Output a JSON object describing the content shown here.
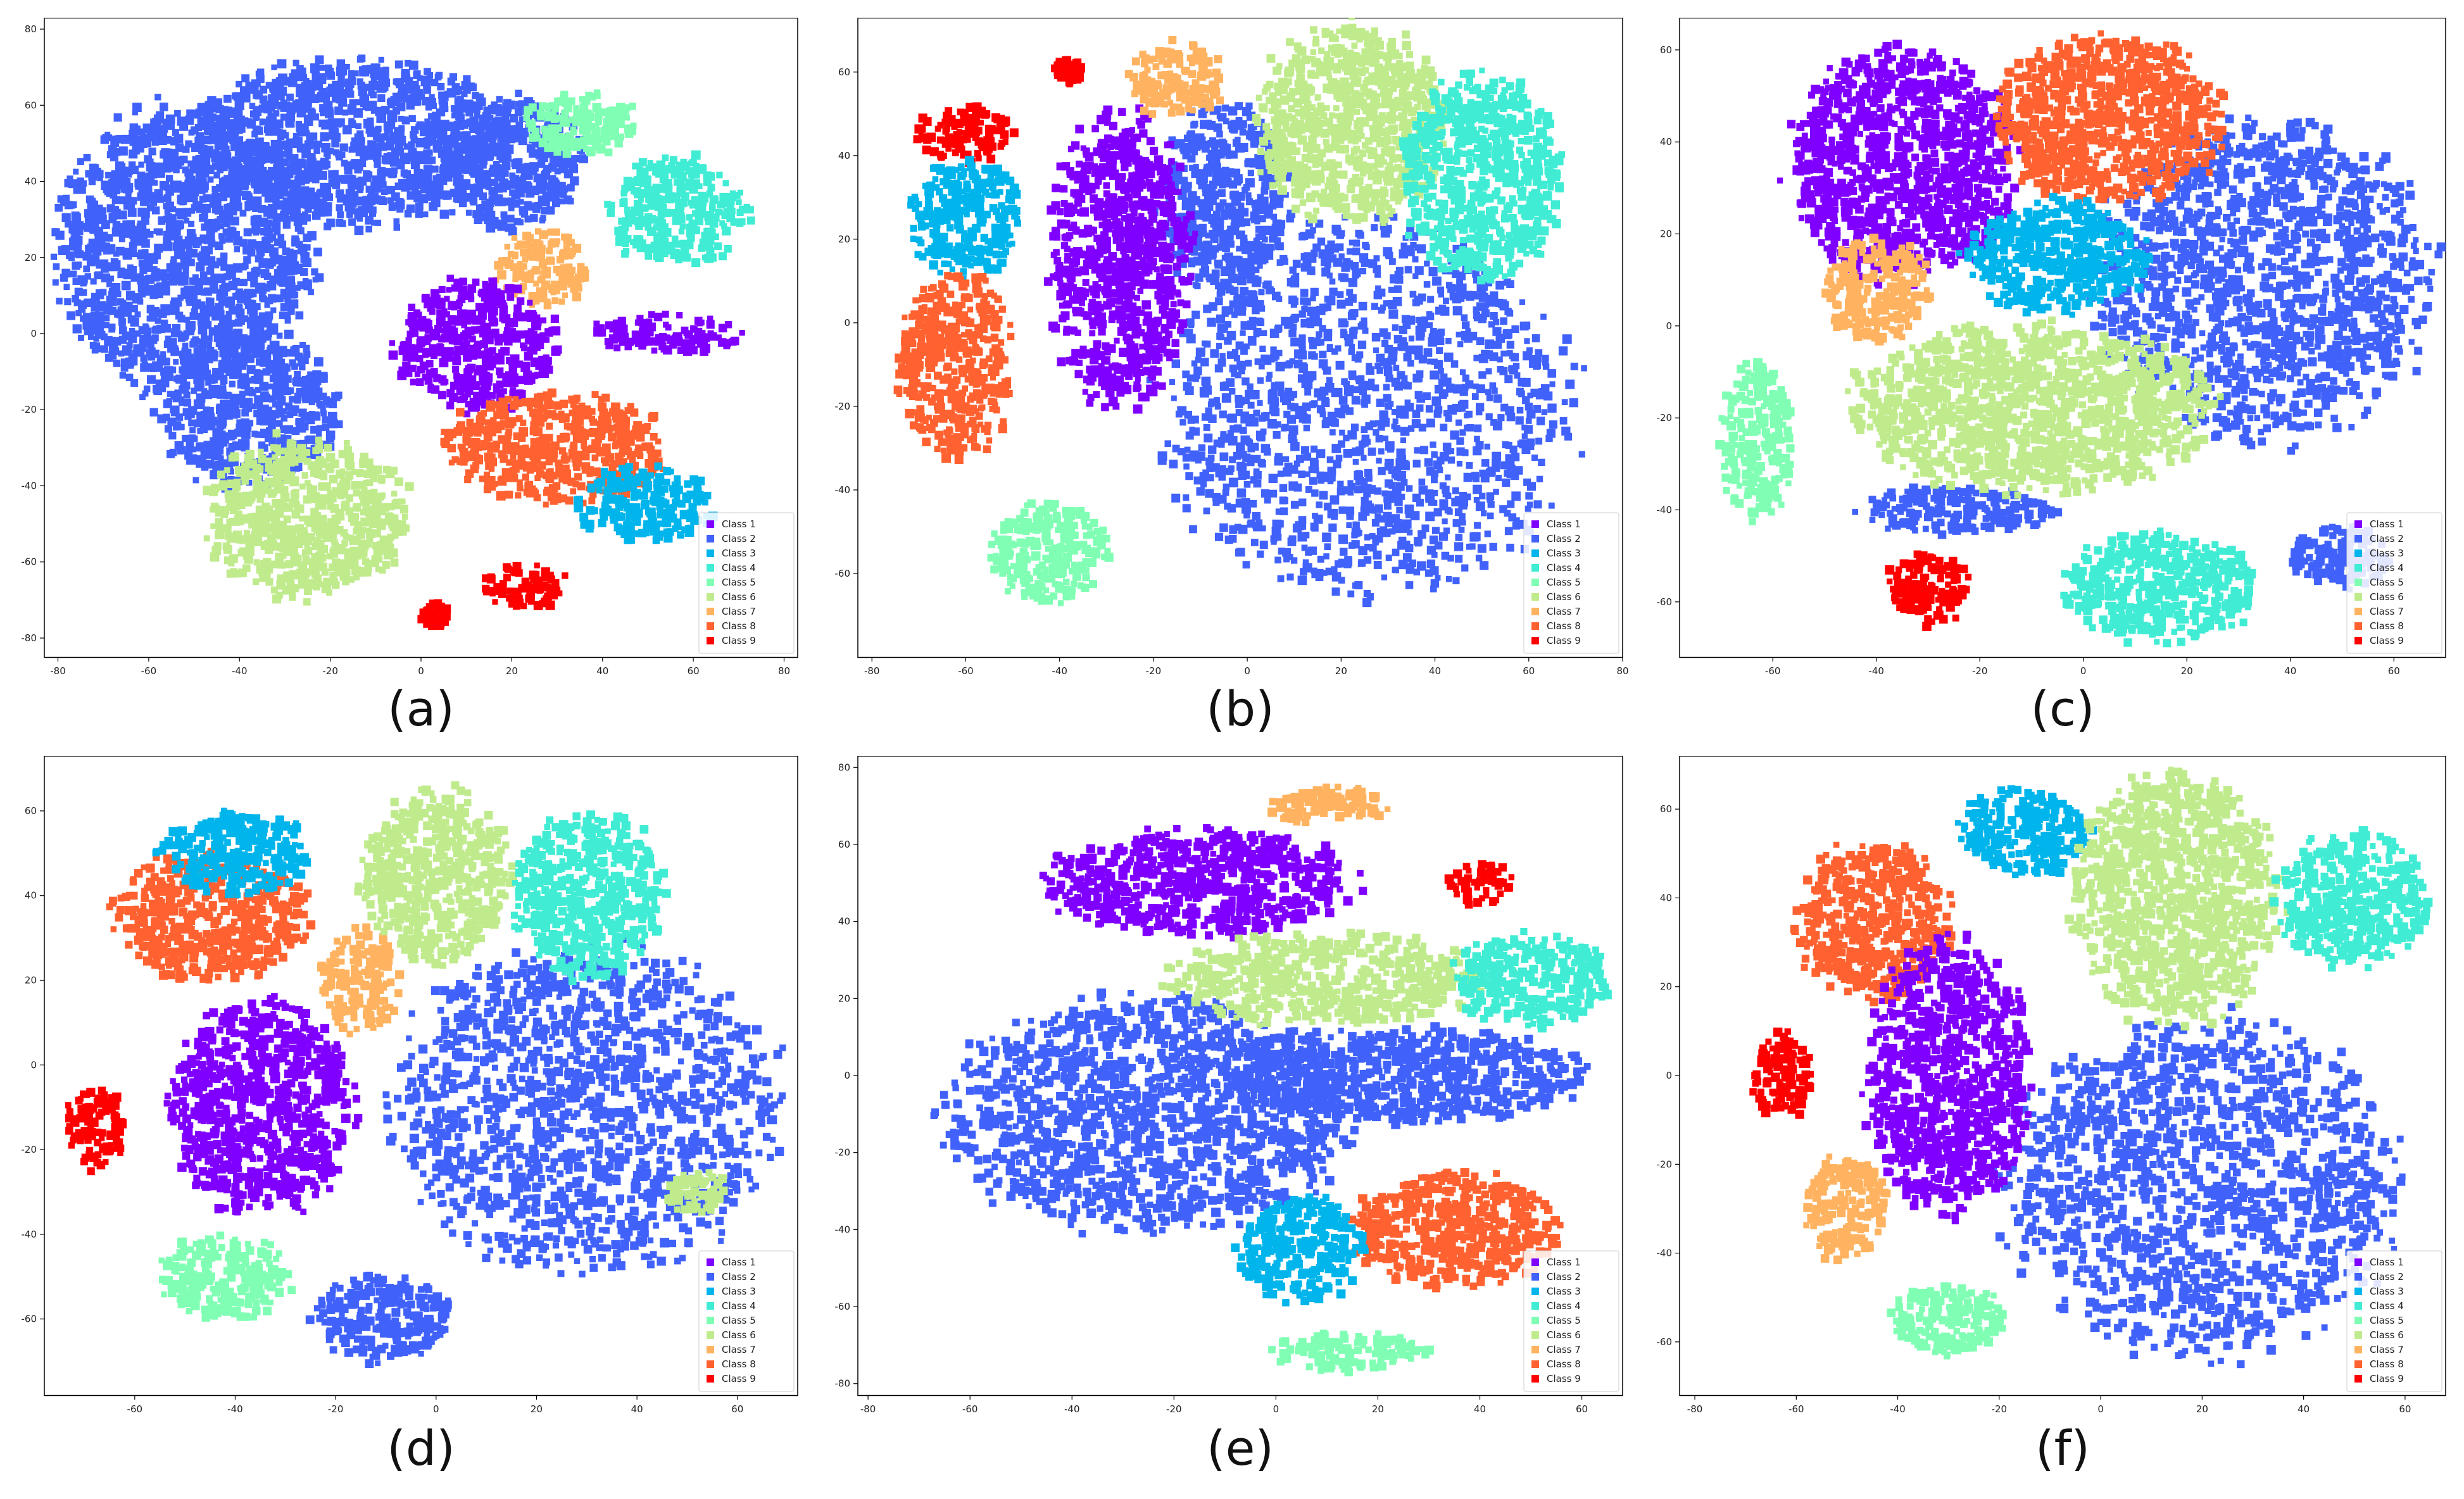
{
  "chart_data": [
    {
      "type": "scatter",
      "title": "",
      "caption": "(a)",
      "xlabel": "",
      "ylabel": "",
      "xlim": [
        -83,
        83
      ],
      "ylim": [
        -85,
        83
      ],
      "xticks": [
        "-80",
        "-60",
        "-40",
        "-20",
        "0",
        "20",
        "40",
        "60",
        "80"
      ],
      "yticks": [
        "-80",
        "-60",
        "-40",
        "-20",
        "0",
        "20",
        "40",
        "60",
        "80"
      ],
      "legend_position": "bottom-right",
      "clusters": [
        {
          "class": 2,
          "x": -52,
          "y": 22,
          "rx": 28,
          "ry": 38
        },
        {
          "class": 2,
          "x": -15,
          "y": 50,
          "rx": 35,
          "ry": 22
        },
        {
          "class": 2,
          "x": -38,
          "y": -20,
          "rx": 20,
          "ry": 20
        },
        {
          "class": 2,
          "x": 20,
          "y": 45,
          "rx": 15,
          "ry": 18
        },
        {
          "class": 5,
          "x": 35,
          "y": 55,
          "rx": 13,
          "ry": 8
        },
        {
          "class": 4,
          "x": 57,
          "y": 32,
          "rx": 16,
          "ry": 14
        },
        {
          "class": 7,
          "x": 27,
          "y": 17,
          "rx": 10,
          "ry": 10
        },
        {
          "class": 1,
          "x": 12,
          "y": -3,
          "rx": 18,
          "ry": 17
        },
        {
          "class": 1,
          "x": 55,
          "y": 0,
          "rx": 17,
          "ry": 5
        },
        {
          "class": 8,
          "x": 30,
          "y": -30,
          "rx": 25,
          "ry": 14
        },
        {
          "class": 3,
          "x": 50,
          "y": -45,
          "rx": 15,
          "ry": 10
        },
        {
          "class": 6,
          "x": -25,
          "y": -48,
          "rx": 22,
          "ry": 21
        },
        {
          "class": 9,
          "x": 23,
          "y": -66,
          "rx": 9,
          "ry": 6
        },
        {
          "class": 9,
          "x": 3,
          "y": -74,
          "rx": 3,
          "ry": 3
        }
      ]
    },
    {
      "type": "scatter",
      "title": "",
      "caption": "(b)",
      "xlabel": "",
      "ylabel": "",
      "xlim": [
        -83,
        80
      ],
      "ylim": [
        -80,
        73
      ],
      "xticks": [
        "-80",
        "-60",
        "-40",
        "-20",
        "0",
        "20",
        "40",
        "60",
        "80"
      ],
      "yticks": [
        "-60",
        "-40",
        "-20",
        "0",
        "20",
        "40",
        "60"
      ],
      "legend_position": "bottom-right",
      "clusters": [
        {
          "class": 2,
          "x": 25,
          "y": -20,
          "rx": 44,
          "ry": 44
        },
        {
          "class": 2,
          "x": -5,
          "y": 30,
          "rx": 14,
          "ry": 22
        },
        {
          "class": 1,
          "x": -27,
          "y": 15,
          "rx": 15,
          "ry": 35
        },
        {
          "class": 6,
          "x": 22,
          "y": 48,
          "rx": 20,
          "ry": 24
        },
        {
          "class": 4,
          "x": 50,
          "y": 35,
          "rx": 17,
          "ry": 24
        },
        {
          "class": 7,
          "x": -15,
          "y": 58,
          "rx": 10,
          "ry": 9
        },
        {
          "class": 9,
          "x": -60,
          "y": 45,
          "rx": 10,
          "ry": 7
        },
        {
          "class": 9,
          "x": -38,
          "y": 60,
          "rx": 3,
          "ry": 3
        },
        {
          "class": 3,
          "x": -60,
          "y": 25,
          "rx": 12,
          "ry": 14
        },
        {
          "class": 8,
          "x": -62,
          "y": -10,
          "rx": 12,
          "ry": 22
        },
        {
          "class": 5,
          "x": -42,
          "y": -55,
          "rx": 13,
          "ry": 12
        }
      ]
    },
    {
      "type": "scatter",
      "title": "",
      "caption": "(c)",
      "xlabel": "",
      "ylabel": "",
      "xlim": [
        -78,
        70
      ],
      "ylim": [
        -72,
        67
      ],
      "xticks": [
        "-60",
        "-40",
        "-20",
        "0",
        "20",
        "40",
        "60"
      ],
      "yticks": [
        "-60",
        "-40",
        "-20",
        "0",
        "20",
        "40",
        "60"
      ],
      "legend_position": "bottom-right",
      "clusters": [
        {
          "class": 2,
          "x": 35,
          "y": 10,
          "rx": 32,
          "ry": 35
        },
        {
          "class": 2,
          "x": -25,
          "y": -40,
          "rx": 20,
          "ry": 5
        },
        {
          "class": 2,
          "x": 50,
          "y": -50,
          "rx": 10,
          "ry": 7
        },
        {
          "class": 1,
          "x": -35,
          "y": 35,
          "rx": 22,
          "ry": 25
        },
        {
          "class": 8,
          "x": 5,
          "y": 45,
          "rx": 22,
          "ry": 18
        },
        {
          "class": 3,
          "x": -5,
          "y": 15,
          "rx": 18,
          "ry": 12
        },
        {
          "class": 7,
          "x": -40,
          "y": 8,
          "rx": 10,
          "ry": 12
        },
        {
          "class": 6,
          "x": -10,
          "y": -18,
          "rx": 35,
          "ry": 18
        },
        {
          "class": 5,
          "x": -63,
          "y": -25,
          "rx": 7,
          "ry": 17
        },
        {
          "class": 9,
          "x": -30,
          "y": -57,
          "rx": 8,
          "ry": 8
        },
        {
          "class": 4,
          "x": 15,
          "y": -57,
          "rx": 18,
          "ry": 12
        }
      ]
    },
    {
      "type": "scatter",
      "title": "",
      "caption": "(d)",
      "xlabel": "",
      "ylabel": "",
      "xlim": [
        -78,
        72
      ],
      "ylim": [
        -78,
        73
      ],
      "xticks": [
        "-60",
        "-40",
        "-20",
        "0",
        "20",
        "40",
        "60"
      ],
      "yticks": [
        "-60",
        "-40",
        "-20",
        "0",
        "20",
        "40",
        "60"
      ],
      "legend_position": "bottom-right",
      "clusters": [
        {
          "class": 2,
          "x": 30,
          "y": -10,
          "rx": 38,
          "ry": 38
        },
        {
          "class": 2,
          "x": -10,
          "y": -60,
          "rx": 14,
          "ry": 10
        },
        {
          "class": 1,
          "x": -35,
          "y": -10,
          "rx": 18,
          "ry": 25
        },
        {
          "class": 8,
          "x": -45,
          "y": 35,
          "rx": 20,
          "ry": 15
        },
        {
          "class": 3,
          "x": -40,
          "y": 50,
          "rx": 15,
          "ry": 10
        },
        {
          "class": 7,
          "x": -15,
          "y": 20,
          "rx": 8,
          "ry": 12
        },
        {
          "class": 6,
          "x": 0,
          "y": 45,
          "rx": 15,
          "ry": 20
        },
        {
          "class": 4,
          "x": 30,
          "y": 40,
          "rx": 15,
          "ry": 20
        },
        {
          "class": 9,
          "x": -68,
          "y": -15,
          "rx": 6,
          "ry": 10
        },
        {
          "class": 5,
          "x": -42,
          "y": -50,
          "rx": 13,
          "ry": 10
        },
        {
          "class": 6,
          "x": 52,
          "y": -30,
          "rx": 6,
          "ry": 5
        }
      ]
    },
    {
      "type": "scatter",
      "title": "",
      "caption": "(e)",
      "xlabel": "",
      "ylabel": "",
      "xlim": [
        -82,
        68
      ],
      "ylim": [
        -83,
        83
      ],
      "xticks": [
        "-80",
        "-60",
        "-40",
        "-20",
        "0",
        "20",
        "40",
        "60"
      ],
      "yticks": [
        "-80",
        "-60",
        "-40",
        "-20",
        "0",
        "20",
        "40",
        "60",
        "80"
      ],
      "legend_position": "bottom-right",
      "clusters": [
        {
          "class": 2,
          "x": -25,
          "y": -10,
          "rx": 40,
          "ry": 30
        },
        {
          "class": 2,
          "x": 25,
          "y": 0,
          "rx": 35,
          "ry": 12
        },
        {
          "class": 1,
          "x": -15,
          "y": 50,
          "rx": 30,
          "ry": 14
        },
        {
          "class": 7,
          "x": 10,
          "y": 70,
          "rx": 12,
          "ry": 5
        },
        {
          "class": 9,
          "x": 40,
          "y": 50,
          "rx": 6,
          "ry": 6
        },
        {
          "class": 6,
          "x": 10,
          "y": 25,
          "rx": 30,
          "ry": 12
        },
        {
          "class": 4,
          "x": 50,
          "y": 25,
          "rx": 15,
          "ry": 12
        },
        {
          "class": 8,
          "x": 35,
          "y": -40,
          "rx": 20,
          "ry": 15
        },
        {
          "class": 3,
          "x": 5,
          "y": -45,
          "rx": 12,
          "ry": 14
        },
        {
          "class": 5,
          "x": 15,
          "y": -72,
          "rx": 15,
          "ry": 5
        }
      ]
    },
    {
      "type": "scatter",
      "title": "",
      "caption": "(f)",
      "xlabel": "",
      "ylabel": "",
      "xlim": [
        -83,
        68
      ],
      "ylim": [
        -72,
        72
      ],
      "xticks": [
        "-80",
        "-60",
        "-40",
        "-20",
        "0",
        "20",
        "40",
        "60"
      ],
      "yticks": [
        "-60",
        "-40",
        "-20",
        "0",
        "20",
        "40",
        "60"
      ],
      "legend_position": "bottom-right",
      "clusters": [
        {
          "class": 2,
          "x": 20,
          "y": -25,
          "rx": 38,
          "ry": 38
        },
        {
          "class": 8,
          "x": -45,
          "y": 35,
          "rx": 15,
          "ry": 18
        },
        {
          "class": 3,
          "x": -15,
          "y": 55,
          "rx": 13,
          "ry": 10
        },
        {
          "class": 6,
          "x": 15,
          "y": 40,
          "rx": 20,
          "ry": 28
        },
        {
          "class": 4,
          "x": 50,
          "y": 40,
          "rx": 15,
          "ry": 15
        },
        {
          "class": 1,
          "x": -30,
          "y": 0,
          "rx": 16,
          "ry": 30
        },
        {
          "class": 9,
          "x": -63,
          "y": 0,
          "rx": 6,
          "ry": 10
        },
        {
          "class": 7,
          "x": -50,
          "y": -30,
          "rx": 8,
          "ry": 12
        },
        {
          "class": 5,
          "x": -30,
          "y": -55,
          "rx": 11,
          "ry": 8
        }
      ]
    }
  ],
  "legend": [
    "Class 1",
    "Class 2",
    "Class 3",
    "Class 4",
    "Class 5",
    "Class 6",
    "Class 7",
    "Class 8",
    "Class 9"
  ],
  "class_colors": [
    "#8000ff",
    "#4062fa",
    "#00b5eb",
    "#40ecd4",
    "#80ffb4",
    "#c0eb8d",
    "#ffb360",
    "#ff6230",
    "#ff0000"
  ]
}
